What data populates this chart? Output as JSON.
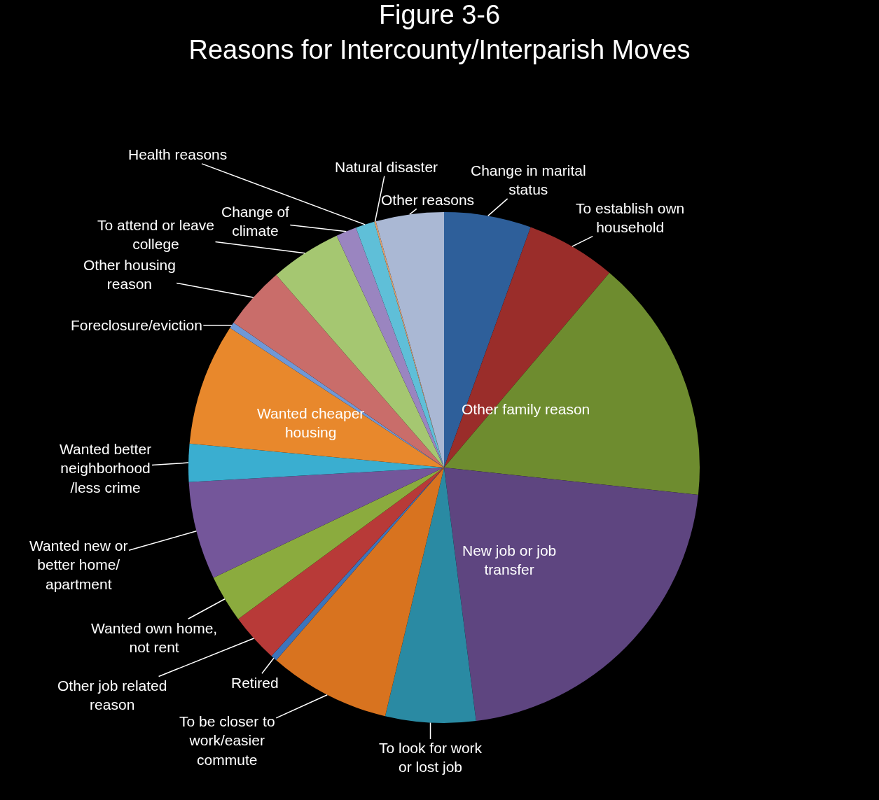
{
  "chart_data": {
    "type": "pie",
    "title": "Figure 3-6\nReasons for Intercounty/Interparish Moves",
    "categories": [
      "Change in marital status",
      "To establish own household",
      "Other family reason",
      "New job or job transfer",
      "To look for work or lost job",
      "To be closer to work/easier commute",
      "Retired",
      "Other job related reason",
      "Wanted own home, not rent",
      "Wanted new or better home/ apartment",
      "Wanted better neighborhood /less crime",
      "Wanted cheaper housing",
      "Foreclosure/eviction",
      "Other housing reason",
      "To attend or leave college",
      "Change of climate",
      "Health reasons",
      "Natural disaster",
      "Other reasons"
    ],
    "values": [
      5.5,
      5.7,
      15.5,
      21.3,
      5.7,
      7.7,
      0.4,
      3.1,
      3.0,
      6.2,
      2.4,
      7.7,
      0.4,
      4.0,
      4.5,
      1.3,
      1.2,
      0.1,
      4.3
    ],
    "colors": [
      "#2e5f9a",
      "#9a2d2a",
      "#6e8c2f",
      "#5e4580",
      "#2a8aa3",
      "#d8731f",
      "#3d74bb",
      "#b83a38",
      "#8bab3e",
      "#74569a",
      "#3aaed0",
      "#e8882c",
      "#6f98d6",
      "#c96d6a",
      "#a5c771",
      "#9a85c0",
      "#5fbfd8",
      "#e3a06a",
      "#aab8d4"
    ]
  }
}
